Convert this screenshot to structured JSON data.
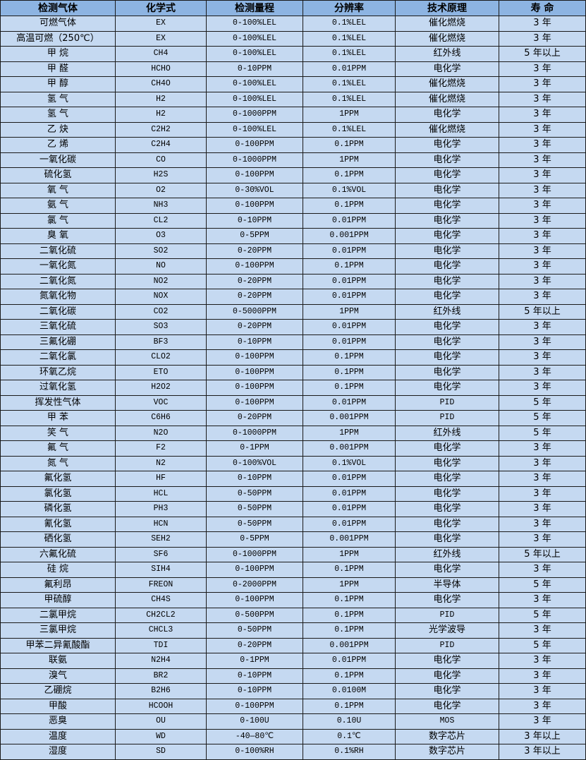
{
  "colors": {
    "header_bg": "#8DB4E2",
    "row_bg": "#C5D9F1",
    "border": "#1a1a1a"
  },
  "table": {
    "headers": [
      "检测气体",
      "化学式",
      "检测量程",
      "分辨率",
      "技术原理",
      "寿 命"
    ],
    "rows": [
      [
        "可燃气体",
        "EX",
        "0-100%LEL",
        "0.1%LEL",
        "催化燃烧",
        "3 年"
      ],
      [
        "高温可燃（250℃）",
        "EX",
        "0-100%LEL",
        "0.1%LEL",
        "催化燃烧",
        "3 年"
      ],
      [
        "甲 烷",
        "CH4",
        "0-100%LEL",
        "0.1%LEL",
        "红外线",
        "5 年以上"
      ],
      [
        "甲 醛",
        "HCHO",
        "0-10PPM",
        "0.01PPM",
        "电化学",
        "3 年"
      ],
      [
        "甲 醇",
        "CH4O",
        "0-100%LEL",
        "0.1%LEL",
        "催化燃烧",
        "3 年"
      ],
      [
        "氢 气",
        "H2",
        "0-100%LEL",
        "0.1%LEL",
        "催化燃烧",
        "3 年"
      ],
      [
        "氢 气",
        "H2",
        "0-1000PPM",
        "1PPM",
        "电化学",
        "3 年"
      ],
      [
        "乙 炔",
        "C2H2",
        "0-100%LEL",
        "0.1%LEL",
        "催化燃烧",
        "3 年"
      ],
      [
        "乙 烯",
        "C2H4",
        "0-100PPM",
        "0.1PPM",
        "电化学",
        "3 年"
      ],
      [
        "一氧化碳",
        "CO",
        "0-1000PPM",
        "1PPM",
        "电化学",
        "3 年"
      ],
      [
        "硫化氢",
        "H2S",
        "0-100PPM",
        "0.1PPM",
        "电化学",
        "3 年"
      ],
      [
        "氧 气",
        "O2",
        "0-30%VOL",
        "0.1%VOL",
        "电化学",
        "3 年"
      ],
      [
        "氨 气",
        "NH3",
        "0-100PPM",
        "0.1PPM",
        "电化学",
        "3 年"
      ],
      [
        "氯 气",
        "CL2",
        "0-10PPM",
        "0.01PPM",
        "电化学",
        "3 年"
      ],
      [
        "臭 氧",
        "O3",
        "0-5PPM",
        "0.001PPM",
        "电化学",
        "3 年"
      ],
      [
        "二氧化硫",
        "SO2",
        "0-20PPM",
        "0.01PPM",
        "电化学",
        "3 年"
      ],
      [
        "一氧化氮",
        "NO",
        "0-100PPM",
        "0.1PPM",
        "电化学",
        "3 年"
      ],
      [
        "二氧化氮",
        "NO2",
        "0-20PPM",
        "0.01PPM",
        "电化学",
        "3 年"
      ],
      [
        "氮氧化物",
        "NOX",
        "0-20PPM",
        "0.01PPM",
        "电化学",
        "3 年"
      ],
      [
        "二氧化碳",
        "CO2",
        "0-5000PPM",
        "1PPM",
        "红外线",
        "5 年以上"
      ],
      [
        "三氧化硫",
        "SO3",
        "0-20PPM",
        "0.01PPM",
        "电化学",
        "3 年"
      ],
      [
        "三氟化硼",
        "BF3",
        "0-10PPM",
        "0.01PPM",
        "电化学",
        "3 年"
      ],
      [
        "二氧化氯",
        "CLO2",
        "0-100PPM",
        "0.1PPM",
        "电化学",
        "3 年"
      ],
      [
        "环氧乙烷",
        "ETO",
        "0-100PPM",
        "0.1PPM",
        "电化学",
        "3 年"
      ],
      [
        "过氧化氢",
        "H2O2",
        "0-100PPM",
        "0.1PPM",
        "电化学",
        "3 年"
      ],
      [
        "挥发性气体",
        "VOC",
        "0-100PPM",
        "0.01PPM",
        "PID",
        "5 年"
      ],
      [
        "甲 苯",
        "C6H6",
        "0-20PPM",
        "0.001PPM",
        "PID",
        "5 年"
      ],
      [
        "笑 气",
        "N2O",
        "0-1000PPM",
        "1PPM",
        "红外线",
        "5 年"
      ],
      [
        "氟 气",
        "F2",
        "0-1PPM",
        "0.001PPM",
        "电化学",
        "3 年"
      ],
      [
        "氮 气",
        "N2",
        "0-100%VOL",
        "0.1%VOL",
        "电化学",
        "3 年"
      ],
      [
        "氟化氢",
        "HF",
        "0-10PPM",
        "0.01PPM",
        "电化学",
        "3 年"
      ],
      [
        "氯化氢",
        "HCL",
        "0-50PPM",
        "0.01PPM",
        "电化学",
        "3 年"
      ],
      [
        "磷化氢",
        "PH3",
        "0-50PPM",
        "0.01PPM",
        "电化学",
        "3 年"
      ],
      [
        "氰化氢",
        "HCN",
        "0-50PPM",
        "0.01PPM",
        "电化学",
        "3 年"
      ],
      [
        "硒化氢",
        "SEH2",
        "0-5PPM",
        "0.001PPM",
        "电化学",
        "3 年"
      ],
      [
        "六氟化硫",
        "SF6",
        "0-1000PPM",
        "1PPM",
        "红外线",
        "5 年以上"
      ],
      [
        "硅 烷",
        "SIH4",
        "0-100PPM",
        "0.1PPM",
        "电化学",
        "3 年"
      ],
      [
        "氟利昂",
        "FREON",
        "0-2000PPM",
        "1PPM",
        "半导体",
        "5 年"
      ],
      [
        "甲硫醇",
        "CH4S",
        "0-100PPM",
        "0.1PPM",
        "电化学",
        "3 年"
      ],
      [
        "二氯甲烷",
        "CH2CL2",
        "0-500PPM",
        "0.1PPM",
        "PID",
        "5 年"
      ],
      [
        "三氯甲烷",
        "CHCL3",
        "0-50PPM",
        "0.1PPM",
        "光学波导",
        "3 年"
      ],
      [
        "甲苯二异氰酸酯",
        "TDI",
        "0-20PPM",
        "0.001PPM",
        "PID",
        "5 年"
      ],
      [
        "联氨",
        "N2H4",
        "0-1PPM",
        "0.01PPM",
        "电化学",
        "3 年"
      ],
      [
        "溴气",
        "BR2",
        "0-10PPM",
        "0.1PPM",
        "电化学",
        "3 年"
      ],
      [
        "乙硼烷",
        "B2H6",
        "0-10PPM",
        "0.0100M",
        "电化学",
        "3 年"
      ],
      [
        "甲酸",
        "HCOOH",
        "0-100PPM",
        "0.1PPM",
        "电化学",
        "3 年"
      ],
      [
        "恶臭",
        "OU",
        "0-100U",
        "0.10U",
        "MOS",
        "3 年"
      ],
      [
        "温度",
        "WD",
        "-40—80℃",
        "0.1℃",
        "数字芯片",
        "3 年以上"
      ],
      [
        "湿度",
        "SD",
        "0-100%RH",
        "0.1%RH",
        "数字芯片",
        "3 年以上"
      ]
    ]
  }
}
